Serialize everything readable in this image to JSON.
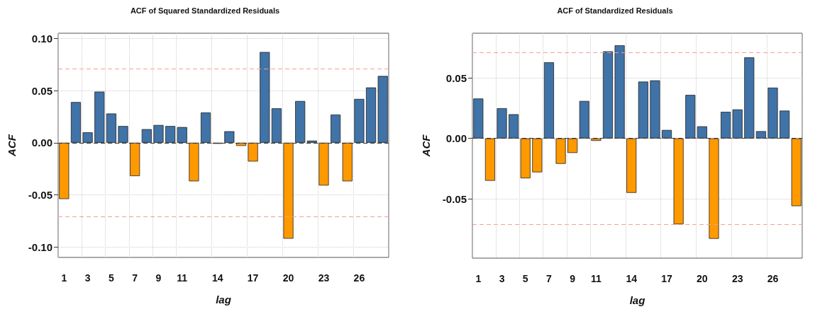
{
  "chart_data": [
    {
      "type": "bar",
      "title": "ACF of Squared Standardized Residuals",
      "xlabel": "lag",
      "ylabel": "ACF",
      "categories": [
        "1",
        null,
        "3",
        null,
        "5",
        null,
        "7",
        null,
        "9",
        null,
        "11",
        null,
        null,
        "14",
        null,
        null,
        "17",
        null,
        null,
        "20",
        null,
        null,
        "23",
        null,
        null,
        "26",
        null,
        null
      ],
      "values": [
        -0.054,
        0.039,
        0.01,
        0.049,
        0.028,
        0.016,
        -0.032,
        0.013,
        0.017,
        0.016,
        0.015,
        -0.037,
        0.029,
        -0.001,
        0.011,
        -0.003,
        -0.018,
        0.087,
        0.033,
        -0.092,
        0.04,
        0.002,
        -0.041,
        0.027,
        -0.037,
        0.042,
        0.053,
        0.064
      ],
      "colors": [
        "#ff9900",
        "#4073a7",
        "#4073a7",
        "#4073a7",
        "#4073a7",
        "#4073a7",
        "#ff9900",
        "#4073a7",
        "#4073a7",
        "#4073a7",
        "#4073a7",
        "#ff9900",
        "#4073a7",
        "#ff9900",
        "#4073a7",
        "#ff9900",
        "#ff9900",
        "#4073a7",
        "#4073a7",
        "#ff9900",
        "#4073a7",
        "#4073a7",
        "#ff9900",
        "#4073a7",
        "#ff9900",
        "#4073a7",
        "#4073a7",
        "#4073a7"
      ],
      "ylim": [
        -0.11,
        0.105
      ],
      "yticks": [
        {
          "value": -0.1,
          "label": "-0.10"
        },
        {
          "value": -0.05,
          "label": "-0.05"
        },
        {
          "value": 0,
          "label": "0.00"
        },
        {
          "value": 0.05,
          "label": "0.05"
        },
        {
          "value": 0.1,
          "label": "0.10"
        }
      ],
      "ref_lines": [
        {
          "axis": "y",
          "value": 0.071,
          "color": "#f4a09a",
          "line_style": "dashed"
        },
        {
          "axis": "y",
          "value": -0.071,
          "color": "#f4a09a",
          "line_style": "dashed"
        },
        {
          "axis": "y",
          "value": 0,
          "color": "#333333",
          "line_style": "dashed"
        }
      ],
      "grid": true
    },
    {
      "type": "bar",
      "title": "ACF of Standardized Residuals",
      "xlabel": "lag",
      "ylabel": "ACF",
      "categories": [
        "1",
        null,
        "3",
        null,
        "5",
        null,
        "7",
        null,
        "9",
        null,
        "11",
        null,
        null,
        "14",
        null,
        null,
        "17",
        null,
        null,
        "20",
        null,
        null,
        "23",
        null,
        null,
        "26",
        null,
        null
      ],
      "values": [
        0.033,
        -0.035,
        0.025,
        0.02,
        -0.033,
        -0.028,
        0.063,
        -0.021,
        -0.012,
        0.031,
        -0.002,
        0.072,
        0.077,
        -0.045,
        0.047,
        0.048,
        0.007,
        -0.071,
        0.036,
        0.01,
        -0.083,
        0.022,
        0.024,
        0.067,
        0.006,
        0.042,
        0.023,
        -0.056
      ],
      "colors": [
        "#4073a7",
        "#ff9900",
        "#4073a7",
        "#4073a7",
        "#ff9900",
        "#ff9900",
        "#4073a7",
        "#ff9900",
        "#ff9900",
        "#4073a7",
        "#ff9900",
        "#4073a7",
        "#4073a7",
        "#ff9900",
        "#4073a7",
        "#4073a7",
        "#4073a7",
        "#ff9900",
        "#4073a7",
        "#4073a7",
        "#ff9900",
        "#4073a7",
        "#4073a7",
        "#4073a7",
        "#4073a7",
        "#4073a7",
        "#4073a7",
        "#ff9900"
      ],
      "ylim": [
        -0.099,
        0.087
      ],
      "yticks": [
        {
          "value": -0.05,
          "label": "-0.05"
        },
        {
          "value": 0,
          "label": "0.00"
        },
        {
          "value": 0.05,
          "label": "0.05"
        }
      ],
      "ref_lines": [
        {
          "axis": "y",
          "value": 0.071,
          "color": "#f4a09a",
          "line_style": "dashed"
        },
        {
          "axis": "y",
          "value": -0.071,
          "color": "#f4a09a",
          "line_style": "dashed"
        },
        {
          "axis": "y",
          "value": 0,
          "color": "#333333",
          "line_style": "dashed"
        }
      ],
      "grid": true
    }
  ]
}
